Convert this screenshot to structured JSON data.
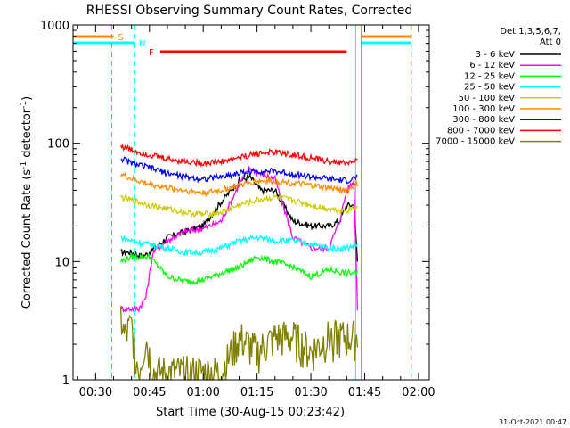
{
  "chart_data": {
    "type": "line",
    "title": "RHESSI Observing Summary Count Rates, Corrected",
    "xlabel": "Start Time (30-Aug-15 00:23:42)",
    "ylabel_main": "Corrected Count Rate (s",
    "ylabel_sup1": "-1",
    "ylabel_mid": " detector",
    "ylabel_sup2": "-1",
    "ylabel_end": ")",
    "ylabel": "Corrected Count Rate (s^-1 detector^-1)",
    "y_scale": "log",
    "ylim": [
      1,
      1000
    ],
    "xlim": [
      "00:23:42",
      "02:03:00"
    ],
    "y_ticks": [
      {
        "value": 1,
        "label": "1"
      },
      {
        "value": 10,
        "label": "10"
      },
      {
        "value": 100,
        "label": "100"
      },
      {
        "value": 1000,
        "label": "1000"
      }
    ],
    "x_ticks": [
      {
        "value": "00:30",
        "label": "00:30"
      },
      {
        "value": "00:45",
        "label": "00:45"
      },
      {
        "value": "01:00",
        "label": "01:00"
      },
      {
        "value": "01:15",
        "label": "01:15"
      },
      {
        "value": "01:30",
        "label": "01:30"
      },
      {
        "value": "01:45",
        "label": "01:45"
      },
      {
        "value": "02:00",
        "label": "02:00"
      }
    ],
    "legend_header": [
      "Det 1,3,5,6,7,",
      "Att 0"
    ],
    "legend_position": "right",
    "series": [
      {
        "name": "3 - 6 keV",
        "color": "#000000",
        "x": [
          "00:37",
          "00:40",
          "00:43",
          "00:45",
          "00:50",
          "00:55",
          "01:00",
          "01:05",
          "01:10",
          "01:13",
          "01:16",
          "01:20",
          "01:25",
          "01:30",
          "01:35",
          "01:38",
          "01:40",
          "01:42",
          "01:43"
        ],
        "y": [
          12,
          12,
          11,
          12,
          16,
          18,
          20,
          32,
          48,
          52,
          40,
          40,
          22,
          20,
          20,
          22,
          30,
          30,
          10
        ]
      },
      {
        "name": "6 - 12 keV",
        "color": "#ff00ff",
        "x": [
          "00:37",
          "00:40",
          "00:42",
          "00:44",
          "00:46",
          "00:50",
          "00:55",
          "01:00",
          "01:05",
          "01:10",
          "01:13",
          "01:16",
          "01:20",
          "01:25",
          "01:30",
          "01:35",
          "01:38",
          "01:40",
          "01:42",
          "01:43"
        ],
        "y": [
          4,
          4,
          4,
          5,
          12,
          15,
          18,
          19,
          22,
          45,
          62,
          55,
          50,
          16,
          13,
          13,
          22,
          40,
          48,
          4
        ]
      },
      {
        "name": "12 - 25 keV",
        "color": "#00ff00",
        "x": [
          "00:37",
          "00:40",
          "00:45",
          "00:50",
          "00:55",
          "01:00",
          "01:05",
          "01:10",
          "01:15",
          "01:20",
          "01:25",
          "01:30",
          "01:35",
          "01:40",
          "01:43"
        ],
        "y": [
          10,
          11,
          11,
          7.5,
          6.8,
          7,
          8,
          9,
          11,
          10,
          9,
          7.5,
          8.5,
          8,
          8
        ]
      },
      {
        "name": "25 - 50 keV",
        "color": "#00ffff",
        "x": [
          "00:37",
          "00:40",
          "00:45",
          "00:50",
          "00:55",
          "01:00",
          "01:05",
          "01:10",
          "01:15",
          "01:20",
          "01:25",
          "01:30",
          "01:35",
          "01:40",
          "01:43"
        ],
        "y": [
          16,
          15,
          14,
          13,
          12,
          12,
          13,
          15,
          16,
          15,
          15,
          14,
          13,
          13,
          14
        ]
      },
      {
        "name": "50 - 100 keV",
        "color": "#cccc00",
        "x": [
          "00:37",
          "00:40",
          "00:45",
          "00:50",
          "00:55",
          "01:00",
          "01:05",
          "01:10",
          "01:15",
          "01:20",
          "01:25",
          "01:30",
          "01:35",
          "01:40",
          "01:43"
        ],
        "y": [
          35,
          33,
          30,
          28,
          26,
          25,
          26,
          30,
          33,
          35,
          33,
          30,
          28,
          27,
          30
        ]
      },
      {
        "name": "100 - 300 keV",
        "color": "#ff8c00",
        "x": [
          "00:37",
          "00:40",
          "00:45",
          "00:50",
          "00:55",
          "01:00",
          "01:05",
          "01:10",
          "01:15",
          "01:20",
          "01:25",
          "01:30",
          "01:35",
          "01:40",
          "01:43"
        ],
        "y": [
          55,
          50,
          45,
          42,
          40,
          38,
          40,
          44,
          48,
          48,
          46,
          44,
          42,
          40,
          45
        ]
      },
      {
        "name": "300 - 800 keV",
        "color": "#0000ff",
        "x": [
          "00:37",
          "00:40",
          "00:45",
          "00:50",
          "00:55",
          "01:00",
          "01:05",
          "01:10",
          "01:15",
          "01:20",
          "01:25",
          "01:30",
          "01:35",
          "01:40",
          "01:43"
        ],
        "y": [
          75,
          68,
          62,
          56,
          52,
          50,
          52,
          56,
          58,
          58,
          55,
          52,
          50,
          48,
          52
        ]
      },
      {
        "name": "800 - 7000 keV",
        "color": "#ff0000",
        "x": [
          "00:37",
          "00:40",
          "00:45",
          "00:50",
          "00:55",
          "01:00",
          "01:05",
          "01:10",
          "01:15",
          "01:20",
          "01:25",
          "01:30",
          "01:35",
          "01:40",
          "01:43"
        ],
        "y": [
          95,
          88,
          80,
          74,
          70,
          68,
          70,
          76,
          82,
          84,
          80,
          75,
          70,
          68,
          72
        ]
      },
      {
        "name": "7000 - 15000 keV",
        "color": "#808000",
        "x": [
          "00:37",
          "00:38",
          "00:40",
          "00:42",
          "00:44",
          "00:46",
          "00:50",
          "00:55",
          "01:00",
          "01:05",
          "01:10",
          "01:15",
          "01:20",
          "01:25",
          "01:30",
          "01:35",
          "01:40",
          "01:43"
        ],
        "y": [
          3,
          2,
          2.5,
          1,
          2,
          1,
          1,
          1,
          1,
          1,
          2,
          1.5,
          2,
          2,
          1.5,
          2,
          2,
          2
        ]
      }
    ],
    "attenuator_state": {
      "label": "Att 0"
    },
    "interval_flags": [
      {
        "label": "S",
        "color": "#ff8c00",
        "start": "00:23:42",
        "end": "00:35:00"
      },
      {
        "label": "S",
        "color": "#ff8c00",
        "start": "01:44:00",
        "end": "01:58:00"
      },
      {
        "label": "N",
        "color": "#00ffff",
        "start": "00:23:42",
        "end": "00:41:00"
      },
      {
        "label": "N",
        "color": "#00ffff",
        "start": "01:44:00",
        "end": "01:58:00"
      },
      {
        "label": "F",
        "color": "#ff0000",
        "start": "00:48:00",
        "end": "01:40:00"
      }
    ],
    "boundaries": [
      {
        "time": "00:34:30",
        "color": "#ff8c00",
        "style": "dashed"
      },
      {
        "time": "00:41:00",
        "color": "#00ffff",
        "style": "dashed"
      },
      {
        "time": "01:42:30",
        "color": "#00ffff",
        "style": "solid"
      },
      {
        "time": "01:44:00",
        "color": "#ff8c00",
        "style": "solid"
      },
      {
        "time": "01:58:00",
        "color": "#ff8c00",
        "style": "dashed"
      }
    ]
  },
  "footer_date": "31-Oct-2021 00:47"
}
